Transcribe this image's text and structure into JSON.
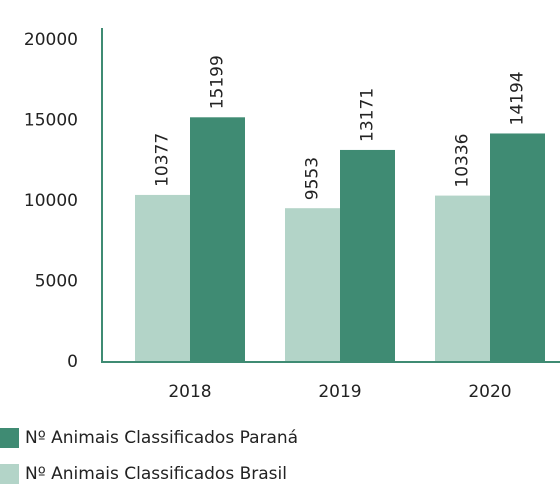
{
  "chart_data": {
    "type": "bar",
    "categories": [
      "2018",
      "2019",
      "2020"
    ],
    "series": [
      {
        "name": "Nº Animais Classificados Brasil",
        "color": "#b3d4c8",
        "values": [
          10377,
          9553,
          10336
        ]
      },
      {
        "name": "Nº Animais Classificados Paraná",
        "color": "#3f8b73",
        "values": [
          15199,
          13171,
          14194
        ]
      }
    ],
    "ylim": [
      0,
      20000
    ],
    "yticks": [
      0,
      5000,
      10000,
      15000,
      20000
    ],
    "grid": false
  }
}
